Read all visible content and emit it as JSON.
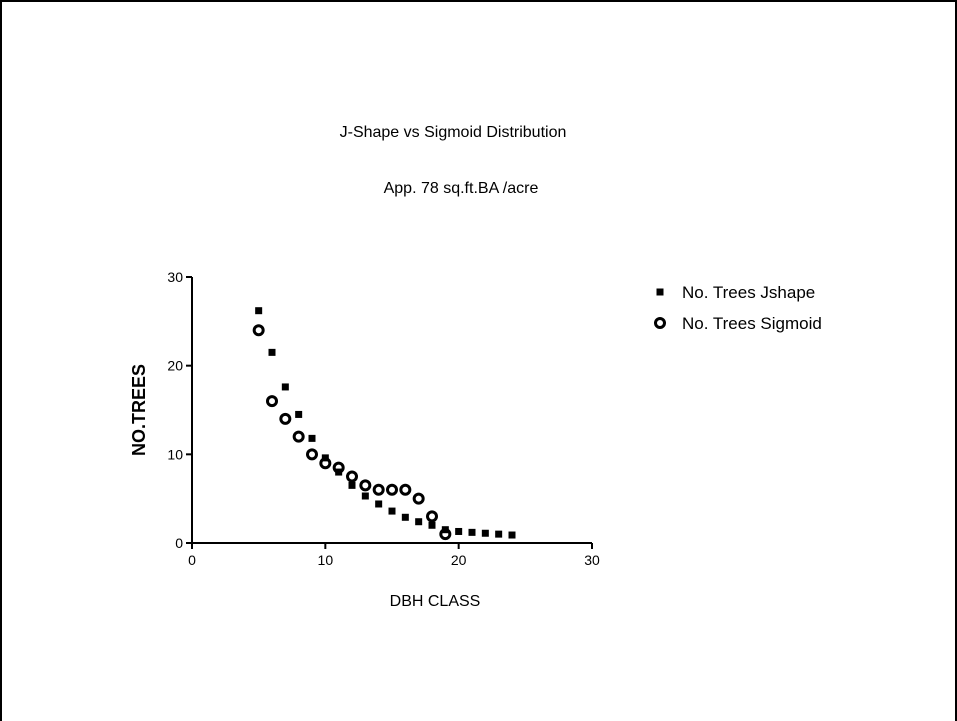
{
  "chart_data": {
    "type": "scatter",
    "title": "J-Shape vs Sigmoid Distribution",
    "subtitle": "App. 78 sq.ft.BA /acre",
    "xlabel": "DBH CLASS",
    "ylabel": "NO.TREES",
    "xlim": [
      0,
      30
    ],
    "ylim": [
      0,
      30
    ],
    "xticks": [
      0,
      10,
      20,
      30
    ],
    "yticks": [
      0,
      10,
      20,
      30
    ],
    "grid": false,
    "legend_position": "right",
    "series": [
      {
        "name": "No. Trees Jshape",
        "marker": "filled-square",
        "color": "#000000",
        "x": [
          5,
          6,
          7,
          8,
          9,
          10,
          11,
          12,
          13,
          14,
          15,
          16,
          17,
          18,
          19,
          20,
          21,
          22,
          23,
          24
        ],
        "y": [
          26.2,
          21.5,
          17.6,
          14.5,
          11.8,
          9.6,
          8.0,
          6.5,
          5.3,
          4.4,
          3.6,
          2.9,
          2.4,
          2.0,
          1.5,
          1.3,
          1.2,
          1.1,
          1.0,
          0.9
        ]
      },
      {
        "name": "No. Trees Sigmoid",
        "marker": "open-circle",
        "color": "#000000",
        "x": [
          5,
          6,
          7,
          8,
          9,
          10,
          11,
          12,
          13,
          14,
          15,
          16,
          17,
          18,
          19
        ],
        "y": [
          24,
          16,
          14,
          12,
          10,
          9,
          8.5,
          7.5,
          6.5,
          6,
          6,
          6,
          5,
          3,
          1
        ]
      }
    ]
  }
}
